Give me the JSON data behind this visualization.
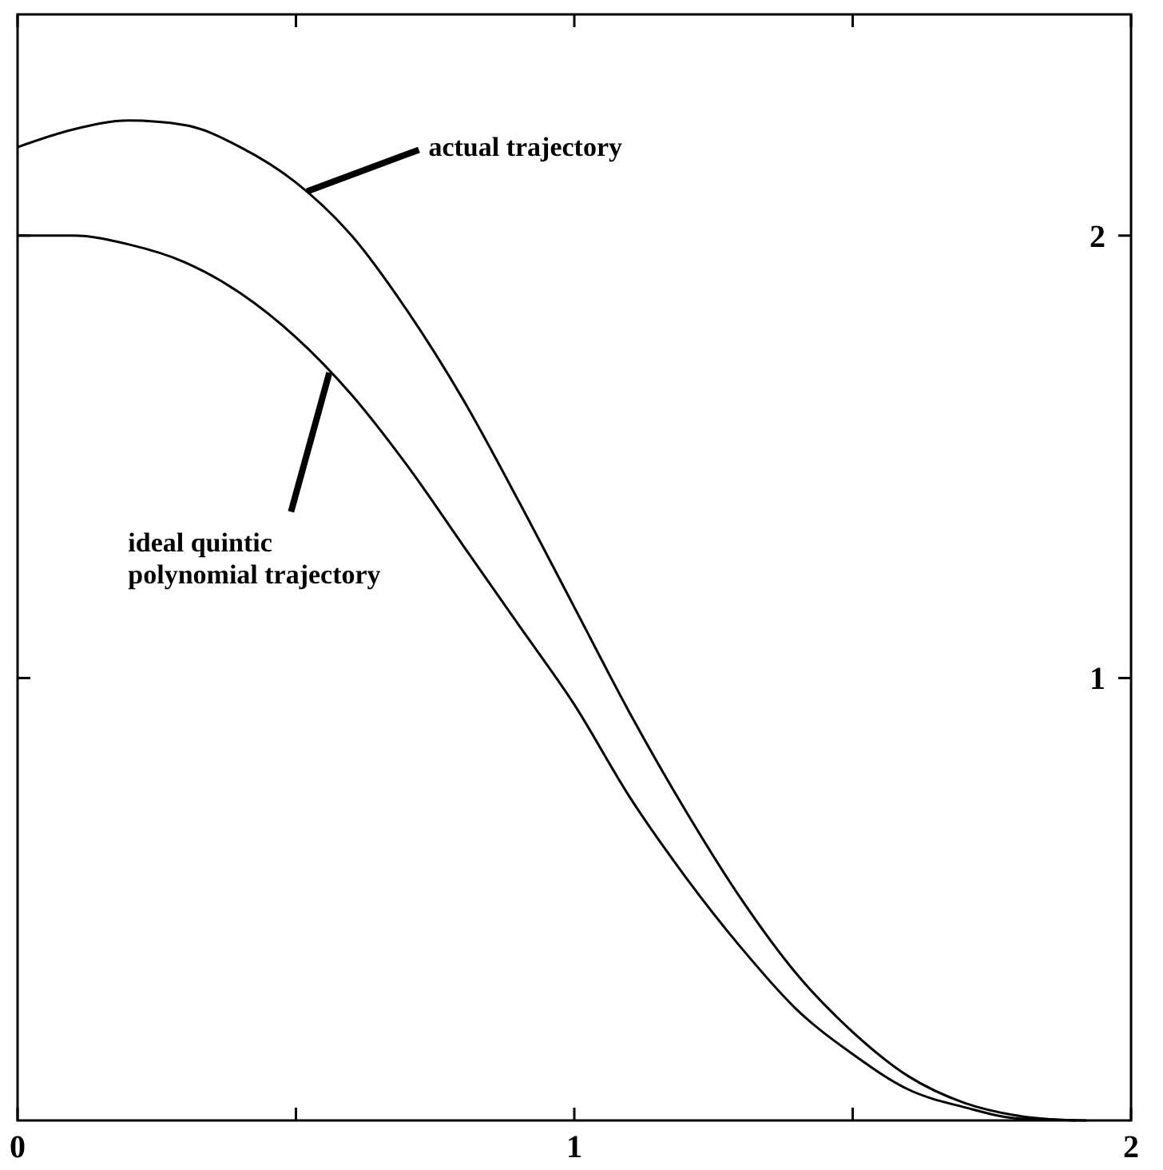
{
  "chart_data": {
    "type": "line",
    "xlim": [
      0,
      2
    ],
    "ylim": [
      0,
      2.5
    ],
    "xticks": [
      0,
      {
        "value": 0.5,
        "label": null
      },
      1,
      {
        "value": 1.5,
        "label": null
      },
      2
    ],
    "yticks": [
      1,
      2
    ],
    "grid": false,
    "line_style": "solid",
    "series": [
      {
        "color": "#000000",
        "x": [
          0,
          0.1,
          0.2,
          0.3,
          0.4,
          0.5,
          0.6,
          0.7,
          0.8,
          0.9,
          1.0,
          1.1,
          1.2,
          1.3,
          1.4,
          1.5,
          1.6,
          1.7,
          1.8,
          1.9
        ],
        "values": [
          2.2,
          2.24,
          2.26,
          2.25,
          2.2,
          2.12,
          2.0,
          1.83,
          1.63,
          1.4,
          1.16,
          0.92,
          0.7,
          0.5,
          0.33,
          0.2,
          0.1,
          0.04,
          0.01,
          0
        ]
      },
      {
        "color": "#000000",
        "x": [
          0,
          0.1,
          0.2,
          0.3,
          0.4,
          0.5,
          0.6,
          0.7,
          0.8,
          0.9,
          1.0,
          1.1,
          1.2,
          1.3,
          1.4,
          1.5,
          1.6,
          1.7,
          1.8,
          1.92
        ],
        "values": [
          2,
          2,
          1.98,
          1.94,
          1.87,
          1.77,
          1.64,
          1.48,
          1.3,
          1.12,
          0.94,
          0.73,
          0.55,
          0.39,
          0.25,
          0.15,
          0.07,
          0.03,
          0.004,
          0
        ]
      }
    ],
    "annotations": [
      {
        "text": "actual trajectory",
        "x": 0.52,
        "y": 2.1
      },
      {
        "text": "ideal quintic\npolynomial trajectory",
        "x": 0.56,
        "y": 1.69
      }
    ]
  }
}
